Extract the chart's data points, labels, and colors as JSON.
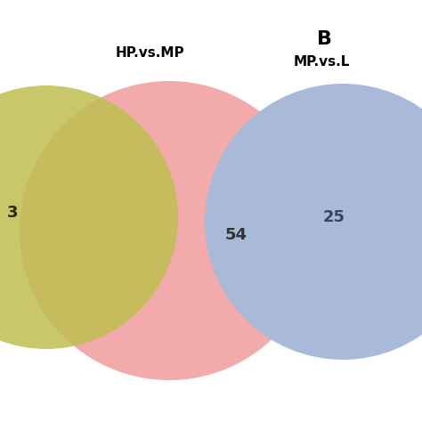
{
  "title_B": "B",
  "label_left": "HP.vs.MP",
  "label_right": "MP.vs.L",
  "number_left_exclusive": "3",
  "number_overlap": "54",
  "number_right_circle": "25",
  "circle_pink_color": "#F2AAAA",
  "circle_olive_color": "#BFBF50",
  "circle_blue_color": "#A8BAD8",
  "background_color": "#FFFFFF",
  "label_fontsize": 11,
  "number_fontsize": 13,
  "title_fontsize": 16
}
